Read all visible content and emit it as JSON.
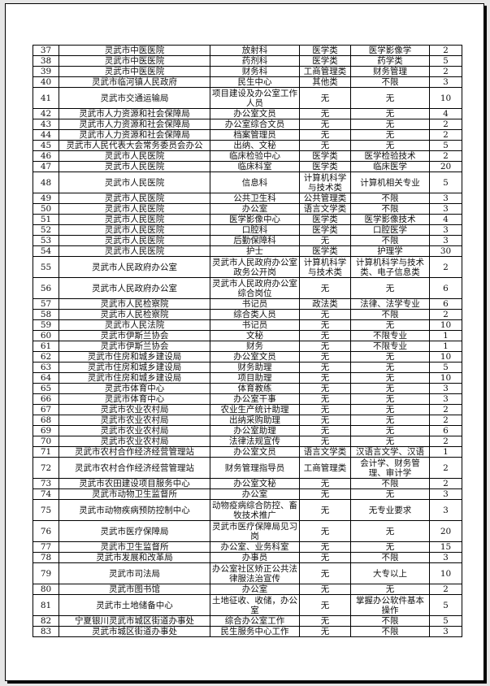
{
  "table": {
    "rows": [
      [
        "37",
        "灵武市中医医院",
        "放射科",
        "医学类",
        "医学影像学",
        "2"
      ],
      [
        "38",
        "灵武市中医医院",
        "药剂科",
        "医学类",
        "药学类",
        "5"
      ],
      [
        "39",
        "灵武市中医医院",
        "财务科",
        "工商管理类",
        "财务管理",
        "2"
      ],
      [
        "40",
        "灵武市临河镇人民政府",
        "民生中心",
        "其他类",
        "不限",
        "3"
      ],
      [
        "41",
        "灵武市交通运输局",
        "项目建设及办公室工作人员",
        "无",
        "无",
        "10"
      ],
      [
        "42",
        "灵武市人力资源和社会保障局",
        "办公室文员",
        "无",
        "无",
        "4"
      ],
      [
        "43",
        "灵武市人力资源和社会保障局",
        "办公室综合文员",
        "无",
        "无",
        "2"
      ],
      [
        "44",
        "灵武市人力资源和社会保障局",
        "档案管理员",
        "无",
        "无",
        "2"
      ],
      [
        "45",
        "灵武市人民代表大会常务委员会办公",
        "出纳、文秘",
        "无",
        "无",
        "5"
      ],
      [
        "46",
        "灵武市人民医院",
        "临床检验中心",
        "医学类",
        "医学检验技术",
        "2"
      ],
      [
        "47",
        "灵武市人民医院",
        "临床科室",
        "医学类",
        "临床医学",
        "20"
      ],
      [
        "48",
        "灵武市人民医院",
        "信息科",
        "计算机科学与技术类",
        "计算机相关专业",
        "5"
      ],
      [
        "49",
        "灵武市人民医院",
        "公共卫生科",
        "公共管理类",
        "不限",
        "3"
      ],
      [
        "50",
        "灵武市人民医院",
        "办公室",
        "语言文学类",
        "不限",
        "3"
      ],
      [
        "51",
        "灵武市人民医院",
        "医学影像中心",
        "医学类",
        "医学影像技术",
        "4"
      ],
      [
        "52",
        "灵武市人民医院",
        "口腔科",
        "医学类",
        "口腔医学",
        "3"
      ],
      [
        "53",
        "灵武市人民医院",
        "后勤保障科",
        "无",
        "不限",
        "3"
      ],
      [
        "54",
        "灵武市人民医院",
        "护士",
        "医学类",
        "护理学",
        "30"
      ],
      [
        "55",
        "灵武市人民政府办公室",
        "灵武市人民政府办公室政务公开岗",
        "计算机科学与技术类",
        "计算机科学与技术类、电子信息类",
        "2"
      ],
      [
        "56",
        "灵武市人民政府办公室",
        "灵武市人民政府办公室综合岗位",
        "无",
        "无",
        "6"
      ],
      [
        "57",
        "灵武市人民检察院",
        "书记员",
        "政法类",
        "法律、法学专业",
        "6"
      ],
      [
        "58",
        "灵武市人民检察院",
        "综合类人员",
        "无",
        "不限",
        "2"
      ],
      [
        "59",
        "灵武市人民法院",
        "书记员",
        "无",
        "无",
        "10"
      ],
      [
        "60",
        "灵武市伊斯兰协会",
        "文秘",
        "无",
        "不限专业",
        "1"
      ],
      [
        "61",
        "灵武市伊斯兰协会",
        "财务",
        "无",
        "不限专业",
        "1"
      ],
      [
        "62",
        "灵武市住房和城乡建设局",
        "办公室文员",
        "无",
        "无",
        "10"
      ],
      [
        "63",
        "灵武市住房和城乡建设局",
        "财务助理",
        "无",
        "无",
        "5"
      ],
      [
        "64",
        "灵武市住房和城乡建设局",
        "项目助理",
        "无",
        "无",
        "10"
      ],
      [
        "65",
        "灵武市体育中心",
        "体育教练",
        "无",
        "无",
        "3"
      ],
      [
        "66",
        "灵武市体育中心",
        "办公室干事",
        "无",
        "无",
        "3"
      ],
      [
        "67",
        "灵武市农业农村局",
        "农业生产统计助理",
        "无",
        "无",
        "2"
      ],
      [
        "68",
        "灵武市农业农村局",
        "出纳采购助理",
        "无",
        "无",
        "2"
      ],
      [
        "69",
        "灵武市农业农村局",
        "办公室助理",
        "无",
        "无",
        "6"
      ],
      [
        "70",
        "灵武市农业农村局",
        "法律法规宣传",
        "无",
        "无",
        "2"
      ],
      [
        "71",
        "灵武市农村合作经济经营管理站",
        "办公室文员",
        "语言文学类",
        "汉语言文学、汉语",
        "1"
      ],
      [
        "72",
        "灵武市农村合作经济经营管理站",
        "财务管理指导员",
        "工商管理类",
        "会计学、财务管理、审计学",
        "2"
      ],
      [
        "73",
        "灵武市农田建设项目服务中心",
        "办公室文秘",
        "无",
        "不限",
        "2"
      ],
      [
        "74",
        "灵武市动物卫生监督所",
        "办公室",
        "无",
        "无",
        "3"
      ],
      [
        "75",
        "灵武市动物疾病预防控制中心",
        "动物疫病综合防控、畜牧技术推广",
        "无",
        "无专业要求",
        "3"
      ],
      [
        "76",
        "灵武市医疗保障局",
        "灵武市医疗保障局见习岗",
        "无",
        "无",
        "20"
      ],
      [
        "77",
        "灵武市卫生监督所",
        "办公室、业务科室",
        "无",
        "无",
        "15"
      ],
      [
        "78",
        "灵武市发展和改革局",
        "办事员",
        "无",
        "不限",
        "3"
      ],
      [
        "79",
        "灵武市司法局",
        "办公室社区矫正公共法律服法治宣传",
        "无",
        "大专以上",
        "10"
      ],
      [
        "80",
        "灵武市图书馆",
        "办公室",
        "无",
        "无",
        "2"
      ],
      [
        "81",
        "灵武市土地储备中心",
        "土地征收、收储，办公室",
        "无",
        "掌握办公软件基本操作",
        "5"
      ],
      [
        "82",
        "宁夏银川灵武市城区街道办事处",
        "综合办公室工作",
        "无",
        "不限",
        "5"
      ],
      [
        "83",
        "灵武市城区街道办事处",
        "民生服务中心工作",
        "无",
        "不限",
        "3"
      ]
    ]
  }
}
